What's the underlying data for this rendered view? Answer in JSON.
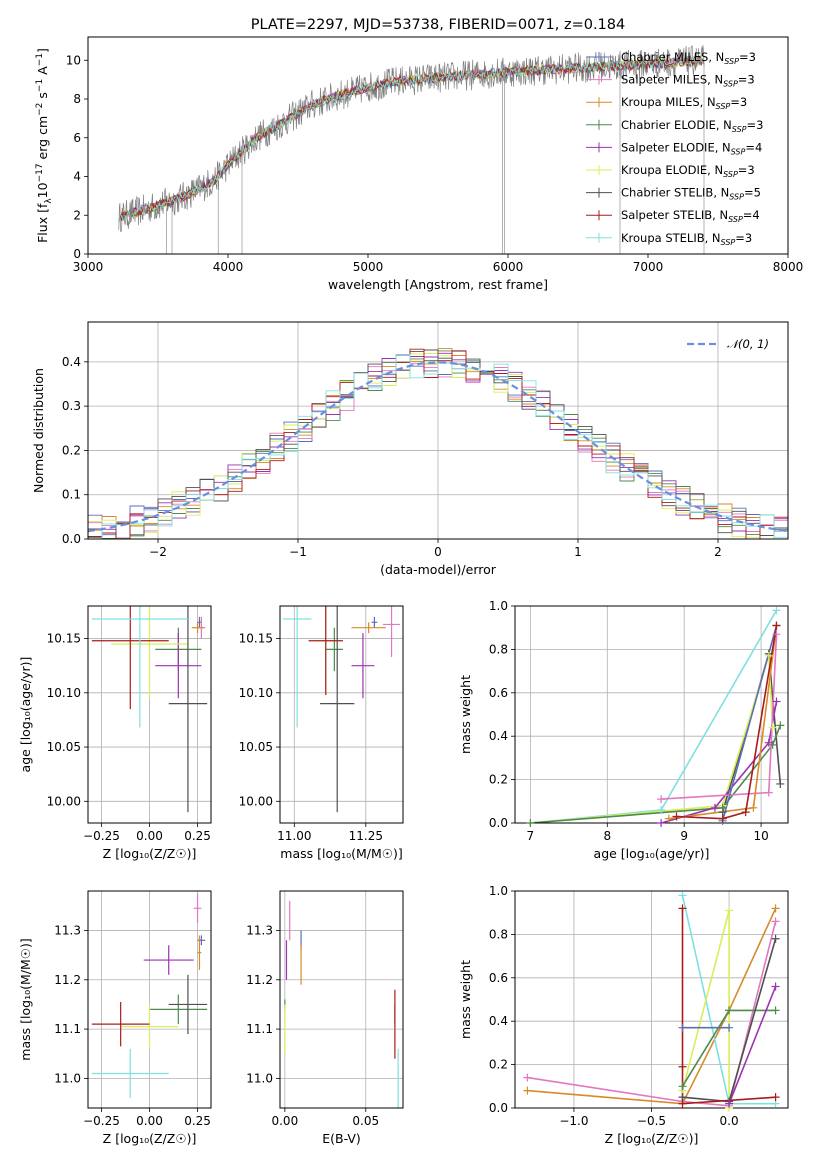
{
  "title": "PLATE=2297, MJD=53738, FIBERID=0071, z=0.184",
  "colors": {
    "Chabrier MILES": "#5b6fb5",
    "Salpeter MILES": "#e377c2",
    "Kroupa MILES": "#d88a2a",
    "Chabrier ELODIE": "#4f8a4f",
    "Salpeter ELODIE": "#9b33b0",
    "Kroupa ELODIE": "#d8ef5a",
    "Chabrier STELIB": "#505050",
    "Salpeter STELIB": "#a81c1c",
    "Kroupa STELIB": "#7fe0e0",
    "data": "#808080",
    "normal": "#6a8fe0"
  },
  "chart_data": [
    {
      "id": "spectrum",
      "type": "line",
      "xlabel": "wavelength [Angstrom, rest frame]",
      "ylabel_main": "Flux [f",
      "ylabel_sub": "λ",
      "ylabel_rest": "10",
      "ylabel_exp": "−17",
      "ylabel_tail": " erg cm",
      "ylabel_exp2": "−2",
      "ylabel_s": " s",
      "ylabel_exp3": "−1",
      "ylabel_A": " A",
      "ylabel_exp4": "−1",
      "ylabel_close": "]",
      "xlim": [
        3000,
        8000
      ],
      "ylim": [
        0,
        11.2
      ],
      "xticks": [
        3000,
        4000,
        5000,
        6000,
        7000,
        8000
      ],
      "yticks": [
        0,
        2,
        4,
        6,
        8,
        10
      ],
      "continuum_x": [
        3220,
        3500,
        3700,
        3900,
        4000,
        4200,
        4400,
        4600,
        4800,
        5000,
        5200,
        5500,
        6000,
        6500,
        7000,
        7200,
        7400
      ],
      "continuum_y": [
        1.9,
        2.5,
        3.0,
        3.8,
        4.6,
        6.0,
        6.8,
        7.7,
        8.2,
        8.6,
        8.9,
        9.1,
        9.4,
        9.6,
        9.8,
        9.9,
        10.0
      ],
      "legend": [
        {
          "name": "Chabrier MILES",
          "nssp": "3"
        },
        {
          "name": "Salpeter MILES",
          "nssp": "3"
        },
        {
          "name": "Kroupa MILES",
          "nssp": "3"
        },
        {
          "name": "Chabrier ELODIE",
          "nssp": "3"
        },
        {
          "name": "Salpeter ELODIE",
          "nssp": "4"
        },
        {
          "name": "Kroupa ELODIE",
          "nssp": "3"
        },
        {
          "name": "Chabrier STELIB",
          "nssp": "5"
        },
        {
          "name": "Salpeter STELIB",
          "nssp": "4"
        },
        {
          "name": "Kroupa STELIB",
          "nssp": "3"
        }
      ],
      "legend_nssp_label": "N",
      "legend_nssp_sub": "SSP"
    },
    {
      "id": "residuals",
      "type": "histogram",
      "xlabel": "(data-model)/error",
      "ylabel": "Normed distribution",
      "xlim": [
        -2.5,
        2.5
      ],
      "ylim": [
        0,
        0.49
      ],
      "xticks": [
        -2,
        -1,
        0,
        1,
        2
      ],
      "yticks": [
        0,
        0.1,
        0.2,
        0.3,
        0.4
      ],
      "legend": "𝒩(0, 1)",
      "bin_width": 0.1
    },
    {
      "id": "age_vs_Z",
      "type": "errorbar",
      "xlabel": "Z [log₁₀(Z/Z☉)]",
      "ylabel": "age  [log₁₀(age/yr)]",
      "xlim": [
        -0.32,
        0.32
      ],
      "ylim": [
        9.98,
        10.18
      ],
      "xticks": [
        -0.25,
        0.0,
        0.25
      ],
      "yticks": [
        10.0,
        10.05,
        10.1,
        10.15
      ],
      "points": [
        {
          "s": "Chabrier MILES",
          "x": 0.26,
          "y": 10.165,
          "xerr": 0.01,
          "yerr": 0.005
        },
        {
          "s": "Salpeter MILES",
          "x": 0.27,
          "y": 10.16,
          "xerr": 0.02,
          "yerr": 0.01
        },
        {
          "s": "Kroupa MILES",
          "x": 0.25,
          "y": 10.16,
          "xerr": 0.03,
          "yerr": 0.005
        },
        {
          "s": "Chabrier ELODIE",
          "x": 0.15,
          "y": 10.14,
          "xerr": 0.12,
          "yerr": 0.02
        },
        {
          "s": "Salpeter ELODIE",
          "x": 0.15,
          "y": 10.125,
          "xerr": 0.12,
          "yerr": 0.03
        },
        {
          "s": "Kroupa ELODIE",
          "x": 0.0,
          "y": 10.145,
          "xerr": 0.2,
          "yerr": 0.05
        },
        {
          "s": "Chabrier STELIB",
          "x": 0.2,
          "y": 10.09,
          "xerr": 0.1,
          "yerr": 0.1
        },
        {
          "s": "Salpeter STELIB",
          "x": -0.1,
          "y": 10.148,
          "xerr": 0.2,
          "yerr": 0.063
        },
        {
          "s": "Kroupa STELIB",
          "x": -0.05,
          "y": 10.168,
          "xerr": 0.25,
          "yerr": 0.1
        }
      ]
    },
    {
      "id": "age_vs_mass",
      "type": "errorbar",
      "xlabel": "mass [log₁₀(M/M☉)]",
      "ylabel": "",
      "xlim": [
        10.95,
        11.38
      ],
      "ylim": [
        9.98,
        10.18
      ],
      "xticks": [
        11.0,
        11.25
      ],
      "yticks": [
        10.0,
        10.05,
        10.1,
        10.15
      ],
      "points": [
        {
          "s": "Chabrier MILES",
          "x": 11.28,
          "y": 10.165,
          "xerr": 0.01,
          "yerr": 0.005
        },
        {
          "s": "Salpeter MILES",
          "x": 11.34,
          "y": 10.163,
          "xerr": 0.03,
          "yerr": 0.03
        },
        {
          "s": "Kroupa MILES",
          "x": 11.26,
          "y": 10.16,
          "xerr": 0.06,
          "yerr": 0.005
        },
        {
          "s": "Chabrier ELODIE",
          "x": 11.14,
          "y": 10.14,
          "xerr": 0.03,
          "yerr": 0.02
        },
        {
          "s": "Salpeter ELODIE",
          "x": 11.24,
          "y": 10.125,
          "xerr": 0.04,
          "yerr": 0.03
        },
        {
          "s": "Kroupa ELODIE",
          "x": 11.11,
          "y": 10.148,
          "xerr": 0.03,
          "yerr": 0.05
        },
        {
          "s": "Chabrier STELIB",
          "x": 11.15,
          "y": 10.09,
          "xerr": 0.06,
          "yerr": 0.1
        },
        {
          "s": "Salpeter STELIB",
          "x": 11.11,
          "y": 10.148,
          "xerr": 0.06,
          "yerr": 0.05
        },
        {
          "s": "Kroupa STELIB",
          "x": 11.01,
          "y": 10.168,
          "xerr": 0.05,
          "yerr": 0.1
        }
      ]
    },
    {
      "id": "weight_vs_age",
      "type": "line",
      "xlabel": "age  [log₁₀(age/yr)]",
      "ylabel": "mass weight",
      "xlim": [
        6.8,
        10.35
      ],
      "ylim": [
        0,
        1
      ],
      "xticks": [
        7,
        8,
        9,
        10
      ],
      "yticks": [
        0,
        0.2,
        0.4,
        0.6,
        0.8,
        1.0
      ],
      "series": [
        {
          "s": "Kroupa STELIB",
          "x": [
            7.0,
            8.7,
            10.2
          ],
          "y": [
            0.0,
            0.06,
            0.98
          ]
        },
        {
          "s": "Chabrier STELIB",
          "x": [
            9.5,
            10.1,
            10.25
          ],
          "y": [
            0.05,
            0.78,
            0.18
          ]
        },
        {
          "s": "Kroupa ELODIE",
          "x": [
            7.0,
            9.5,
            10.1,
            10.15
          ],
          "y": [
            0.0,
            0.08,
            0.77,
            0.44
          ]
        },
        {
          "s": "Chabrier ELODIE",
          "x": [
            7.0,
            9.5,
            10.15,
            10.25
          ],
          "y": [
            0.0,
            0.07,
            0.36,
            0.45
          ]
        },
        {
          "s": "Salpeter ELODIE",
          "x": [
            8.7,
            9.4,
            10.1,
            10.2
          ],
          "y": [
            0.0,
            0.07,
            0.37,
            0.56
          ]
        },
        {
          "s": "Salpeter MILES",
          "x": [
            8.7,
            10.1,
            10.2
          ],
          "y": [
            0.11,
            0.14,
            0.87
          ]
        },
        {
          "s": "Kroupa MILES",
          "x": [
            8.8,
            9.9,
            10.2
          ],
          "y": [
            0.02,
            0.07,
            0.91
          ]
        },
        {
          "s": "Chabrier MILES",
          "x": [
            9.5,
            10.2
          ],
          "y": [
            0.01,
            0.91
          ]
        },
        {
          "s": "Salpeter STELIB",
          "x": [
            8.9,
            9.5,
            9.8,
            10.2
          ],
          "y": [
            0.03,
            0.02,
            0.05,
            0.91
          ]
        }
      ]
    },
    {
      "id": "mass_vs_Z",
      "type": "errorbar",
      "xlabel": "Z [log₁₀(Z/Z☉)]",
      "ylabel": "mass [log₁₀(M/M☉)]",
      "xlim": [
        -0.32,
        0.32
      ],
      "ylim": [
        10.94,
        11.38
      ],
      "xticks": [
        -0.25,
        0.0,
        0.25
      ],
      "yticks": [
        11.0,
        11.1,
        11.2,
        11.3
      ],
      "points": [
        {
          "s": "Chabrier MILES",
          "x": 0.27,
          "y": 11.28,
          "xerr": 0.02,
          "yerr": 0.01
        },
        {
          "s": "Salpeter MILES",
          "x": 0.25,
          "y": 11.345,
          "xerr": 0.02,
          "yerr": 0.03
        },
        {
          "s": "Kroupa MILES",
          "x": 0.26,
          "y": 11.255,
          "xerr": 0.01,
          "yerr": 0.035
        },
        {
          "s": "Chabrier ELODIE",
          "x": 0.15,
          "y": 11.14,
          "xerr": 0.15,
          "yerr": 0.03
        },
        {
          "s": "Salpeter ELODIE",
          "x": 0.1,
          "y": 11.24,
          "xerr": 0.13,
          "yerr": 0.03
        },
        {
          "s": "Kroupa ELODIE",
          "x": 0.0,
          "y": 11.105,
          "xerr": 0.15,
          "yerr": 0.045
        },
        {
          "s": "Chabrier STELIB",
          "x": 0.2,
          "y": 11.15,
          "xerr": 0.1,
          "yerr": 0.06
        },
        {
          "s": "Salpeter STELIB",
          "x": -0.15,
          "y": 11.11,
          "xerr": 0.15,
          "yerr": 0.045
        },
        {
          "s": "Kroupa STELIB",
          "x": -0.1,
          "y": 11.01,
          "xerr": 0.2,
          "yerr": 0.05
        }
      ]
    },
    {
      "id": "mass_vs_EBV",
      "type": "errorbar",
      "xlabel": "E(B-V)",
      "ylabel": "",
      "xlim": [
        -0.003,
        0.073
      ],
      "ylim": [
        10.94,
        11.38
      ],
      "xticks": [
        0.0,
        0.05
      ],
      "yticks": [
        11.0,
        11.1,
        11.2,
        11.3
      ],
      "points": [
        {
          "s": "Chabrier MILES",
          "x": 0.01,
          "y": 11.28,
          "xerr": 0,
          "yerr": 0.02
        },
        {
          "s": "Salpeter MILES",
          "x": 0.003,
          "y": 11.32,
          "xerr": 0,
          "yerr": 0.04
        },
        {
          "s": "Kroupa MILES",
          "x": 0.01,
          "y": 11.23,
          "xerr": 0,
          "yerr": 0.04
        },
        {
          "s": "Chabrier ELODIE",
          "x": 0.0,
          "y": 11.15,
          "xerr": 0,
          "yerr": 0.01
        },
        {
          "s": "Salpeter ELODIE",
          "x": 0.001,
          "y": 11.24,
          "xerr": 0,
          "yerr": 0.04
        },
        {
          "s": "Kroupa ELODIE",
          "x": 0.0,
          "y": 11.1,
          "xerr": 0,
          "yerr": 0.05
        },
        {
          "s": "Chabrier STELIB",
          "x": 0.068,
          "y": 11.13,
          "xerr": 0,
          "yerr": 0.02
        },
        {
          "s": "Salpeter STELIB",
          "x": 0.068,
          "y": 11.11,
          "xerr": 0,
          "yerr": 0.07
        },
        {
          "s": "Kroupa STELIB",
          "x": 0.07,
          "y": 11.0,
          "xerr": 0,
          "yerr": 0.06
        }
      ]
    },
    {
      "id": "weight_vs_Z",
      "type": "line",
      "xlabel": "Z [log₁₀(Z/Z☉)]",
      "ylabel": "mass weight",
      "xlim": [
        -1.38,
        0.38
      ],
      "ylim": [
        0,
        1
      ],
      "xticks": [
        -1.0,
        -0.5,
        0.0
      ],
      "yticks": [
        0,
        0.2,
        0.4,
        0.6,
        0.8,
        1.0
      ],
      "series": [
        {
          "s": "Salpeter MILES",
          "x": [
            -1.3,
            -0.3,
            0.0,
            0.3
          ],
          "y": [
            0.14,
            0.03,
            0.01,
            0.86
          ]
        },
        {
          "s": "Kroupa MILES",
          "x": [
            -1.3,
            -0.3,
            0.0,
            0.3
          ],
          "y": [
            0.08,
            0.02,
            0.45,
            0.92
          ]
        },
        {
          "s": "Kroupa STELIB",
          "x": [
            -0.3,
            0.0,
            0.3
          ],
          "y": [
            0.98,
            0.02,
            0.02
          ]
        },
        {
          "s": "Kroupa ELODIE",
          "x": [
            -0.3,
            0.0,
            0.0
          ],
          "y": [
            0.08,
            0.91,
            0.0
          ]
        },
        {
          "s": "Chabrier ELODIE",
          "x": [
            -0.3,
            0.0,
            0.3
          ],
          "y": [
            0.1,
            0.45,
            0.45
          ]
        },
        {
          "s": "Chabrier STELIB",
          "x": [
            -0.3,
            0.0,
            0.3
          ],
          "y": [
            0.05,
            0.03,
            0.78
          ]
        },
        {
          "s": "Salpeter ELODIE",
          "x": [
            0.0,
            0.3
          ],
          "y": [
            0.02,
            0.56
          ]
        },
        {
          "s": "Salpeter STELIB",
          "x": [
            -0.3,
            -0.3,
            -0.3,
            0.3
          ],
          "y": [
            0.92,
            0.19,
            0.02,
            0.05
          ]
        },
        {
          "s": "Chabrier MILES",
          "x": [
            -0.3,
            0.0
          ],
          "y": [
            0.37,
            0.37
          ]
        }
      ]
    }
  ]
}
